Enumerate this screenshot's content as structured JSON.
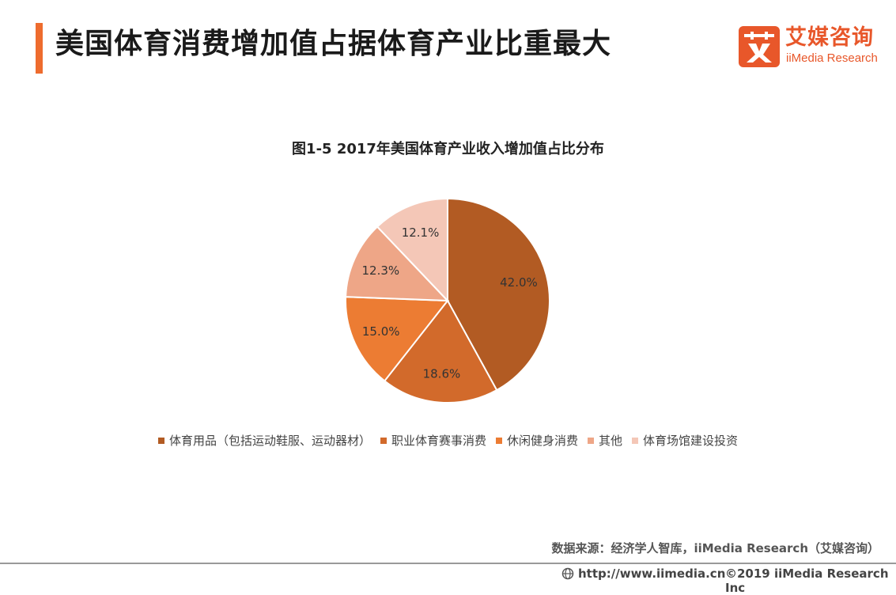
{
  "header": {
    "title": "美国体育消费增加值占据体育产业比重最大",
    "accent_color": "#ee6c2e"
  },
  "logo": {
    "mark_char": "艾",
    "name_cn": "艾媒咨询",
    "name_en": "iiMedia Research",
    "color": "#e8572a"
  },
  "chart_data": {
    "type": "pie",
    "title": "图1-5  2017年美国体育产业收入增加值占比分布",
    "categories": [
      "体育用品（包括运动鞋服、运动器材）",
      "职业体育赛事消费",
      "休闲健身消费",
      "其他",
      "体育场馆建设投资"
    ],
    "values": [
      42.0,
      18.6,
      15.0,
      12.3,
      12.1
    ],
    "labels": [
      "42.0%",
      "18.6%",
      "15.0%",
      "12.3%",
      "12.1%"
    ],
    "colors": [
      "#b25b23",
      "#d26a2b",
      "#ec7c33",
      "#eea687",
      "#f4c7b7"
    ],
    "unit": "%",
    "legend_position": "bottom"
  },
  "source": "数据来源：经济学人智库，iiMedia Research（艾媒咨询）",
  "footer": {
    "url": "http://www.iimedia.cn",
    "copyright": "©2019  iiMedia Research  Inc",
    "icon": "globe-icon"
  }
}
